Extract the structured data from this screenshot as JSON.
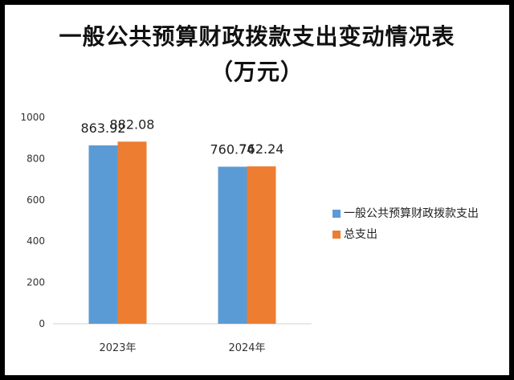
{
  "chart_data": {
    "type": "bar",
    "title_line1": "一般公共预算财政拨款支出变动情况表",
    "title_line2": "（万元）",
    "categories": [
      "2023年",
      "2024年"
    ],
    "series": [
      {
        "name": "一般公共预算财政拨款支出",
        "values": [
          863.92,
          760.74
        ],
        "color": "#5b9bd5"
      },
      {
        "name": "总支出",
        "values": [
          882.08,
          762.24
        ],
        "color": "#ed7d31"
      }
    ],
    "ylim": [
      0,
      1000
    ],
    "yticks": [
      0,
      200,
      400,
      600,
      800,
      1000
    ],
    "grid": false,
    "legend_position": "right"
  }
}
